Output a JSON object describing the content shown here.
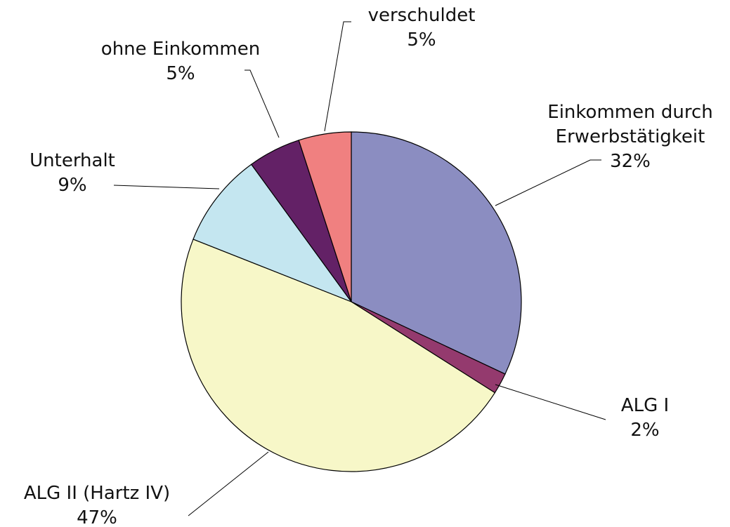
{
  "chart_data": {
    "type": "pie",
    "categories": [
      "Einkommen durch Erwerbstätigkeit",
      "ALG I",
      "ALG II (Hartz IV)",
      "Unterhalt",
      "ohne Einkommen",
      "verschuldet"
    ],
    "values": [
      32,
      2,
      47,
      9,
      5,
      5
    ],
    "value_labels": [
      "32%",
      "2%",
      "47%",
      "9%",
      "5%",
      "5%"
    ],
    "colors": [
      "#8b8dc1",
      "#943a6e",
      "#f7f7c8",
      "#c4e6f0",
      "#632166",
      "#f08080"
    ]
  }
}
